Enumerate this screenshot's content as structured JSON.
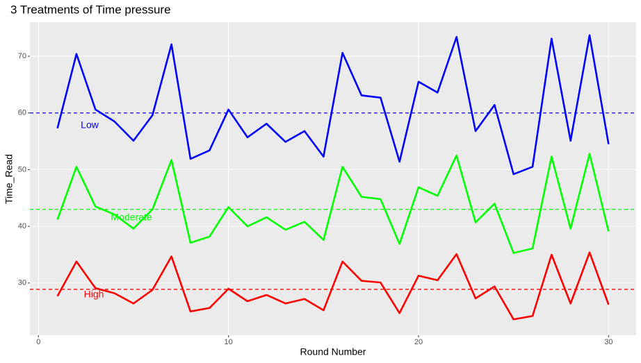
{
  "chart_data": {
    "type": "line",
    "title": "3 Treatments of Time pressure",
    "x_label": "Round Number",
    "y_label": "Time_Read",
    "x": [
      1,
      2,
      3,
      4,
      5,
      6,
      7,
      8,
      9,
      10,
      11,
      12,
      13,
      14,
      15,
      16,
      17,
      18,
      19,
      20,
      21,
      22,
      23,
      24,
      25,
      26,
      27,
      28,
      29,
      30
    ],
    "series": [
      {
        "name": "Low",
        "color": "#0000ff",
        "hline": 60,
        "values": [
          57.3,
          70.4,
          60.6,
          58.5,
          55.1,
          59.6,
          72.1,
          51.9,
          53.4,
          60.6,
          55.7,
          58.1,
          54.9,
          56.8,
          52.3,
          70.6,
          63.1,
          62.7,
          51.4,
          65.5,
          63.6,
          73.4,
          56.8,
          61.4,
          49.2,
          50.5,
          73.1,
          55.1,
          73.7,
          54.5
        ]
      },
      {
        "name": "Moderate",
        "color": "#00ff00",
        "hline": 43,
        "values": [
          41.2,
          50.5,
          43.5,
          42.1,
          39.6,
          43.0,
          51.7,
          37.1,
          38.2,
          43.4,
          40.0,
          41.6,
          39.4,
          40.8,
          37.6,
          50.5,
          45.2,
          44.8,
          36.9,
          46.9,
          45.4,
          52.5,
          40.7,
          44.0,
          35.3,
          36.1,
          52.3,
          39.6,
          52.8,
          39.1
        ]
      },
      {
        "name": "High",
        "color": "#ff0000",
        "hline": 28.9,
        "values": [
          27.7,
          33.8,
          29.1,
          28.2,
          26.4,
          28.8,
          34.7,
          25.0,
          25.6,
          29.0,
          26.8,
          27.9,
          26.4,
          27.2,
          25.2,
          33.8,
          30.4,
          30.1,
          24.7,
          31.3,
          30.5,
          35.1,
          27.3,
          29.4,
          23.6,
          24.2,
          35.0,
          26.4,
          35.4,
          26.2
        ]
      }
    ],
    "xlim": [
      -0.45,
      31.45
    ],
    "ylim": [
      20.8,
      76.0
    ],
    "xticks": [
      0,
      10,
      20,
      30
    ],
    "yticks": [
      30,
      40,
      50,
      60,
      70
    ],
    "grid": true
  }
}
